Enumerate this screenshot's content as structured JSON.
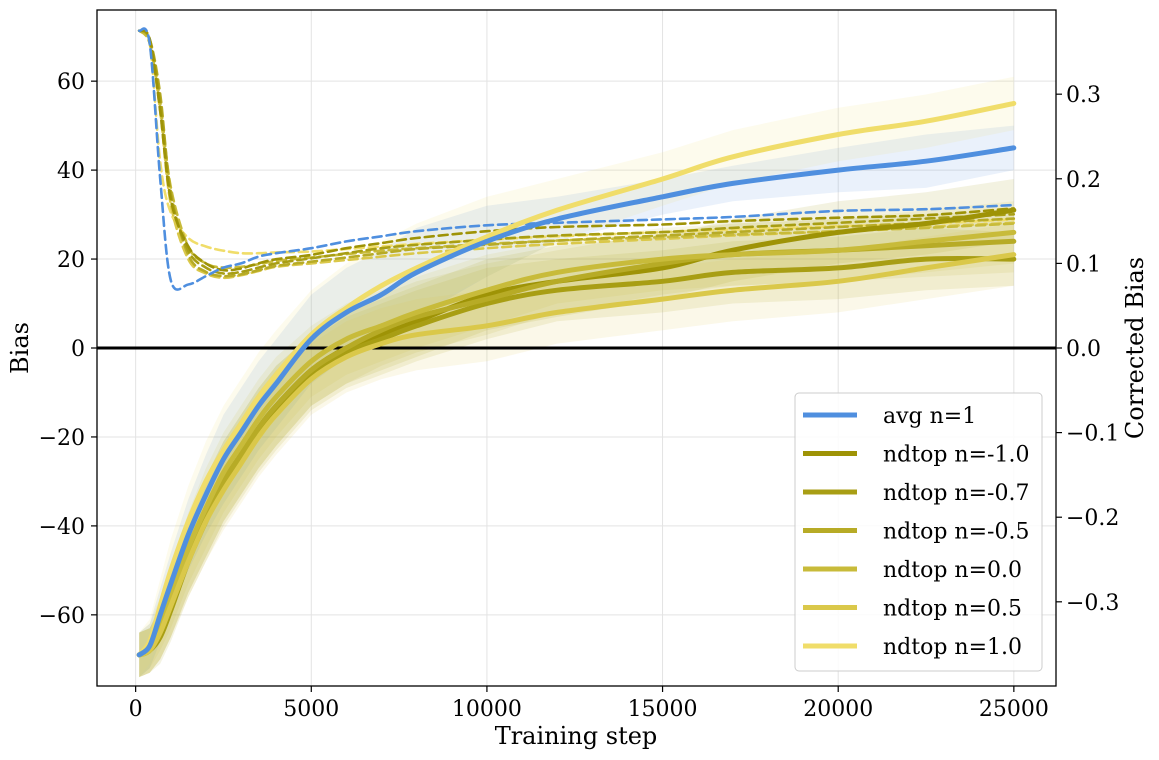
{
  "chart_data": {
    "type": "line",
    "xlabel": "Training step",
    "ylabel": "Bias",
    "y2label": "Corrected Bias",
    "xlim": [
      -1100,
      26200
    ],
    "ylim": [
      -76,
      76
    ],
    "y2lim": [
      -0.3995,
      0.3995
    ],
    "xticks": [
      0,
      5000,
      10000,
      15000,
      20000,
      25000
    ],
    "xtick_labels": [
      "0",
      "5000",
      "10000",
      "15000",
      "20000",
      "25000"
    ],
    "yticks": [
      -60,
      -40,
      -20,
      0,
      20,
      40,
      60
    ],
    "ytick_labels": [
      "−60",
      "−40",
      "−20",
      "0",
      "20",
      "40",
      "60"
    ],
    "y2ticks": [
      -0.3,
      -0.2,
      -0.1,
      0.0,
      0.1,
      0.2,
      0.3
    ],
    "y2tick_labels": [
      "−0.3",
      "−0.2",
      "−0.1",
      "0.0",
      "0.1",
      "0.2",
      "0.3"
    ],
    "grid": true,
    "legend_position": "bottom-right",
    "zero_line": 0,
    "x": [
      100,
      400,
      700,
      1000,
      1500,
      2000,
      2500,
      3000,
      3500,
      4000,
      5000,
      6000,
      7000,
      8000,
      10000,
      12000,
      15000,
      17000,
      20000,
      22500,
      25000
    ],
    "series": [
      {
        "name": "avg n=1",
        "color": "#4f8fdf",
        "bias": [
          -69,
          -67,
          -60,
          -53,
          -42,
          -33,
          -25,
          -19,
          -13,
          -8,
          2,
          8,
          12,
          17,
          24,
          29,
          34,
          37,
          40,
          42,
          45
        ],
        "band": [
          5,
          5,
          6,
          7,
          8,
          9,
          10,
          10,
          10,
          10,
          10,
          10,
          10,
          10,
          8,
          5,
          4,
          4,
          5,
          6,
          5
        ],
        "corrected": [
          0.375,
          0.36,
          0.2,
          0.08,
          0.075,
          0.085,
          0.095,
          0.1,
          0.108,
          0.112,
          0.118,
          0.126,
          0.132,
          0.138,
          0.145,
          0.148,
          0.152,
          0.155,
          0.162,
          0.164,
          0.169
        ]
      },
      {
        "name": "ndtop n=-1.0",
        "color": "#9e9306",
        "bias": [
          -69,
          -68,
          -64,
          -58,
          -47,
          -38,
          -30,
          -24,
          -18,
          -13,
          -5,
          0,
          3,
          6,
          12,
          15,
          18,
          22,
          26,
          28,
          31
        ],
        "band": [
          5,
          5,
          6,
          7,
          8,
          9,
          9,
          9,
          9,
          9,
          8,
          8,
          8,
          8,
          8,
          8,
          7,
          7,
          7,
          7,
          7
        ],
        "corrected": [
          0.375,
          0.365,
          0.28,
          0.175,
          0.12,
          0.1,
          0.092,
          0.094,
          0.1,
          0.105,
          0.11,
          0.118,
          0.124,
          0.13,
          0.138,
          0.143,
          0.146,
          0.15,
          0.154,
          0.157,
          0.165
        ]
      },
      {
        "name": "ndtop n=-0.7",
        "color": "#a89e14",
        "bias": [
          -69,
          -68,
          -65,
          -59,
          -48,
          -39,
          -31,
          -25,
          -19,
          -14,
          -6,
          -1,
          2,
          5,
          10,
          13,
          15,
          17,
          18,
          20,
          20
        ],
        "band": [
          5,
          5,
          6,
          7,
          8,
          9,
          9,
          9,
          9,
          9,
          8,
          8,
          8,
          8,
          8,
          7,
          7,
          7,
          7,
          7,
          6
        ],
        "corrected": [
          0.375,
          0.365,
          0.29,
          0.18,
          0.115,
          0.095,
          0.088,
          0.09,
          0.095,
          0.1,
          0.106,
          0.112,
          0.118,
          0.122,
          0.128,
          0.133,
          0.137,
          0.142,
          0.148,
          0.153,
          0.158
        ]
      },
      {
        "name": "ndtop n=-0.5",
        "color": "#b7ab26",
        "bias": [
          -69,
          -68,
          -64,
          -58,
          -47,
          -38,
          -30,
          -24,
          -18,
          -13,
          -5,
          0,
          4,
          7,
          11,
          15,
          19,
          21,
          22,
          23,
          24
        ],
        "band": [
          5,
          5,
          6,
          7,
          8,
          9,
          9,
          9,
          9,
          9,
          8,
          8,
          8,
          8,
          8,
          7,
          7,
          7,
          7,
          7,
          7
        ],
        "corrected": [
          0.375,
          0.365,
          0.3,
          0.185,
          0.11,
          0.09,
          0.085,
          0.087,
          0.092,
          0.097,
          0.102,
          0.107,
          0.112,
          0.117,
          0.122,
          0.127,
          0.133,
          0.137,
          0.143,
          0.148,
          0.153
        ]
      },
      {
        "name": "ndtop n=0.0",
        "color": "#c8bb3a",
        "bias": [
          -69,
          -67,
          -62,
          -56,
          -45,
          -36,
          -28,
          -22,
          -16,
          -11,
          -3,
          2,
          5,
          8,
          13,
          17,
          20,
          21,
          22,
          24,
          26
        ],
        "band": [
          5,
          5,
          6,
          7,
          8,
          9,
          9,
          9,
          9,
          9,
          8,
          8,
          8,
          8,
          8,
          7,
          7,
          7,
          7,
          7,
          7
        ],
        "corrected": [
          0.375,
          0.36,
          0.29,
          0.19,
          0.12,
          0.1,
          0.095,
          0.096,
          0.099,
          0.103,
          0.107,
          0.111,
          0.115,
          0.118,
          0.123,
          0.127,
          0.131,
          0.134,
          0.138,
          0.142,
          0.147
        ]
      },
      {
        "name": "ndtop n=0.5",
        "color": "#dac84a",
        "bias": [
          -69,
          -68,
          -64,
          -58,
          -48,
          -39,
          -32,
          -26,
          -20,
          -15,
          -7,
          -2,
          1,
          3,
          5,
          8,
          11,
          13,
          15,
          18,
          21
        ],
        "band": [
          5,
          5,
          6,
          7,
          8,
          9,
          9,
          9,
          9,
          9,
          8,
          8,
          8,
          8,
          8,
          7,
          7,
          7,
          7,
          7,
          7
        ],
        "corrected": [
          0.375,
          0.36,
          0.28,
          0.17,
          0.105,
          0.088,
          0.083,
          0.086,
          0.091,
          0.096,
          0.1,
          0.104,
          0.108,
          0.112,
          0.118,
          0.123,
          0.129,
          0.133,
          0.138,
          0.143,
          0.148
        ]
      },
      {
        "name": "ndtop n=1.0",
        "color": "#f0dd6a",
        "bias": [
          -69,
          -66,
          -58,
          -50,
          -39,
          -30,
          -23,
          -17,
          -11,
          -6,
          3,
          9,
          14,
          18,
          25,
          31,
          38,
          43,
          48,
          51,
          55
        ],
        "band": [
          5,
          5,
          6,
          7,
          8,
          9,
          10,
          10,
          10,
          10,
          10,
          10,
          10,
          10,
          9,
          7,
          6,
          6,
          6,
          6,
          6
        ],
        "corrected": [
          0.375,
          0.36,
          0.22,
          0.16,
          0.13,
          0.12,
          0.115,
          0.112,
          0.112,
          0.113,
          0.114,
          0.117,
          0.12,
          0.123,
          0.128,
          0.132,
          0.137,
          0.14,
          0.144,
          0.147,
          0.152
        ]
      }
    ]
  }
}
